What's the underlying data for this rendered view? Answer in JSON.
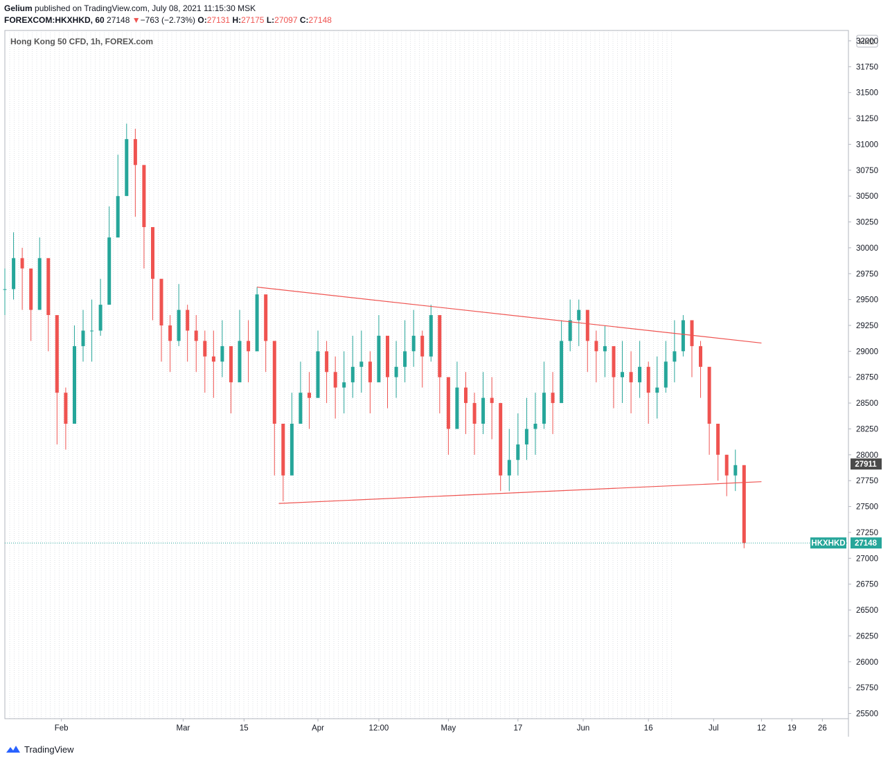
{
  "header": {
    "author": "Gelium",
    "published_text": "published on TradingView.com, July 08, 2021 11:15:30 MSK",
    "symbol_line": "FOREXCOM:HKXHKD, 60",
    "last": "27148",
    "change_arrow": "▼",
    "change": "−763 (−2.73%)",
    "o_label": "O:",
    "o": "27131",
    "h_label": "H:",
    "h": "27175",
    "l_label": "L:",
    "l": "27097",
    "c_label": "C:",
    "c": "27148"
  },
  "footer": {
    "brand": "TradingView"
  },
  "colors": {
    "up": "#26a69a",
    "down": "#ef5350",
    "trend": "#ef5350",
    "axis": "#131722",
    "last_label": "#26a69a",
    "prev_label": "#4a4a4a"
  },
  "chart_data": {
    "type": "candlestick",
    "title": "Hong Kong 50 CFD, 1h, FOREX.com",
    "currency": "HKD",
    "symbol_label": "HKXHKD",
    "last_price": 27148,
    "prev_close_price": 27911,
    "ylim": [
      25450,
      32100
    ],
    "y_ticks": [
      25500,
      25750,
      26000,
      26250,
      26500,
      26750,
      27000,
      27250,
      27500,
      27750,
      28000,
      28250,
      28500,
      28750,
      29000,
      29250,
      29500,
      29750,
      30000,
      30250,
      30500,
      30750,
      31000,
      31250,
      31500,
      31750,
      32000
    ],
    "x_range": [
      "2021-01-19",
      "2021-08-01"
    ],
    "x_ticks": [
      {
        "label": "Feb",
        "date": "2021-02-01"
      },
      {
        "label": "Mar",
        "date": "2021-03-01"
      },
      {
        "label": "15",
        "date": "2021-03-15"
      },
      {
        "label": "Apr",
        "date": "2021-04-01"
      },
      {
        "label": "12:00",
        "date": "2021-04-15"
      },
      {
        "label": "May",
        "date": "2021-05-01"
      },
      {
        "label": "17",
        "date": "2021-05-17"
      },
      {
        "label": "Jun",
        "date": "2021-06-01"
      },
      {
        "label": "16",
        "date": "2021-06-16"
      },
      {
        "label": "Jul",
        "date": "2021-07-01"
      },
      {
        "label": "12",
        "date": "2021-07-12"
      },
      {
        "label": "19",
        "date": "2021-07-19"
      },
      {
        "label": "26",
        "date": "2021-07-26"
      }
    ],
    "series": [
      {
        "dates": [
          "2021-01-19",
          "2021-01-21",
          "2021-01-23",
          "2021-01-25",
          "2021-01-27",
          "2021-01-29",
          "2021-01-31",
          "2021-02-02",
          "2021-02-04",
          "2021-02-06",
          "2021-02-08",
          "2021-02-10",
          "2021-02-12",
          "2021-02-14",
          "2021-02-16",
          "2021-02-18",
          "2021-02-20",
          "2021-02-22",
          "2021-02-24",
          "2021-02-26",
          "2021-02-28",
          "2021-03-02",
          "2021-03-04",
          "2021-03-06",
          "2021-03-08",
          "2021-03-10",
          "2021-03-12",
          "2021-03-14",
          "2021-03-16",
          "2021-03-18",
          "2021-03-20",
          "2021-03-22",
          "2021-03-24",
          "2021-03-26",
          "2021-03-28",
          "2021-03-30",
          "2021-04-01",
          "2021-04-03",
          "2021-04-05",
          "2021-04-07",
          "2021-04-09",
          "2021-04-11",
          "2021-04-13",
          "2021-04-15",
          "2021-04-17",
          "2021-04-19",
          "2021-04-21",
          "2021-04-23",
          "2021-04-25",
          "2021-04-27",
          "2021-04-29",
          "2021-05-01",
          "2021-05-03",
          "2021-05-05",
          "2021-05-07",
          "2021-05-09",
          "2021-05-11",
          "2021-05-13",
          "2021-05-15",
          "2021-05-17",
          "2021-05-19",
          "2021-05-21",
          "2021-05-23",
          "2021-05-25",
          "2021-05-27",
          "2021-05-29",
          "2021-05-31",
          "2021-06-02",
          "2021-06-04",
          "2021-06-06",
          "2021-06-08",
          "2021-06-10",
          "2021-06-12",
          "2021-06-14",
          "2021-06-16",
          "2021-06-18",
          "2021-06-20",
          "2021-06-22",
          "2021-06-24",
          "2021-06-26",
          "2021-06-28",
          "2021-06-30",
          "2021-07-02",
          "2021-07-04",
          "2021-07-06",
          "2021-07-08"
        ],
        "close": [
          29600,
          29900,
          29800,
          29400,
          29900,
          29350,
          28600,
          28300,
          29050,
          29200,
          29200,
          29450,
          30100,
          30500,
          31050,
          30800,
          30200,
          29700,
          29250,
          29100,
          29400,
          29200,
          29100,
          28950,
          28900,
          29050,
          28700,
          29100,
          29000,
          29550,
          29100,
          28300,
          27800,
          28300,
          28600,
          28550,
          29000,
          28800,
          28650,
          28700,
          28850,
          28900,
          28700,
          29150,
          28750,
          28850,
          29000,
          29150,
          28950,
          29350,
          28750,
          28250,
          28650,
          28500,
          28300,
          28550,
          28500,
          27800,
          27950,
          28100,
          28250,
          28300,
          28600,
          28500,
          29100,
          29300,
          29400,
          29100,
          29000,
          29050,
          28750,
          28800,
          28700,
          28850,
          28600,
          28650,
          28900,
          29000,
          29300,
          29050,
          28850,
          28300,
          28000,
          27800,
          27900,
          27148
        ],
        "high": [
          29800,
          30150,
          30000,
          29700,
          30100,
          29600,
          28900,
          28650,
          29250,
          29400,
          29500,
          29700,
          30400,
          30900,
          31200,
          31150,
          30500,
          30000,
          29500,
          29350,
          29650,
          29450,
          29350,
          29200,
          29200,
          29300,
          29000,
          29400,
          29300,
          29620,
          29400,
          28500,
          28100,
          28600,
          28900,
          28800,
          29200,
          29100,
          28950,
          29000,
          29150,
          29200,
          29000,
          29350,
          29050,
          29100,
          29300,
          29400,
          29200,
          29450,
          29000,
          28550,
          28900,
          28800,
          28600,
          28800,
          28750,
          28300,
          28250,
          28400,
          28550,
          28600,
          28900,
          28800,
          29300,
          29500,
          29500,
          29350,
          29200,
          29250,
          29000,
          29100,
          29000,
          29100,
          28900,
          28950,
          29100,
          29300,
          29350,
          29300,
          29100,
          28600,
          28300,
          28000,
          28050,
          27900
        ],
        "low": [
          29350,
          29500,
          29400,
          29100,
          29400,
          29000,
          28100,
          28050,
          28700,
          28900,
          28900,
          29150,
          29700,
          30100,
          30600,
          30300,
          29800,
          29300,
          28900,
          28800,
          29050,
          28900,
          28800,
          28600,
          28550,
          28750,
          28400,
          28750,
          28700,
          29100,
          28800,
          27800,
          27550,
          27900,
          28300,
          28250,
          28650,
          28500,
          28350,
          28400,
          28550,
          28600,
          28400,
          28800,
          28450,
          28550,
          28700,
          28850,
          28650,
          28900,
          28400,
          28000,
          28350,
          28200,
          28000,
          28200,
          28150,
          27650,
          27650,
          27800,
          27950,
          28000,
          28250,
          28200,
          28700,
          29000,
          29050,
          28800,
          28700,
          28750,
          28450,
          28500,
          28400,
          28550,
          28300,
          28350,
          28600,
          28700,
          28950,
          28750,
          28550,
          28000,
          27750,
          27600,
          27650,
          27097
        ]
      }
    ],
    "annotations": {
      "trendlines": [
        {
          "from": {
            "date": "2021-03-18",
            "price": 29620
          },
          "to": {
            "date": "2021-07-12",
            "price": 29080
          }
        },
        {
          "from": {
            "date": "2021-03-23",
            "price": 27530
          },
          "to": {
            "date": "2021-07-12",
            "price": 27740
          }
        }
      ]
    }
  }
}
